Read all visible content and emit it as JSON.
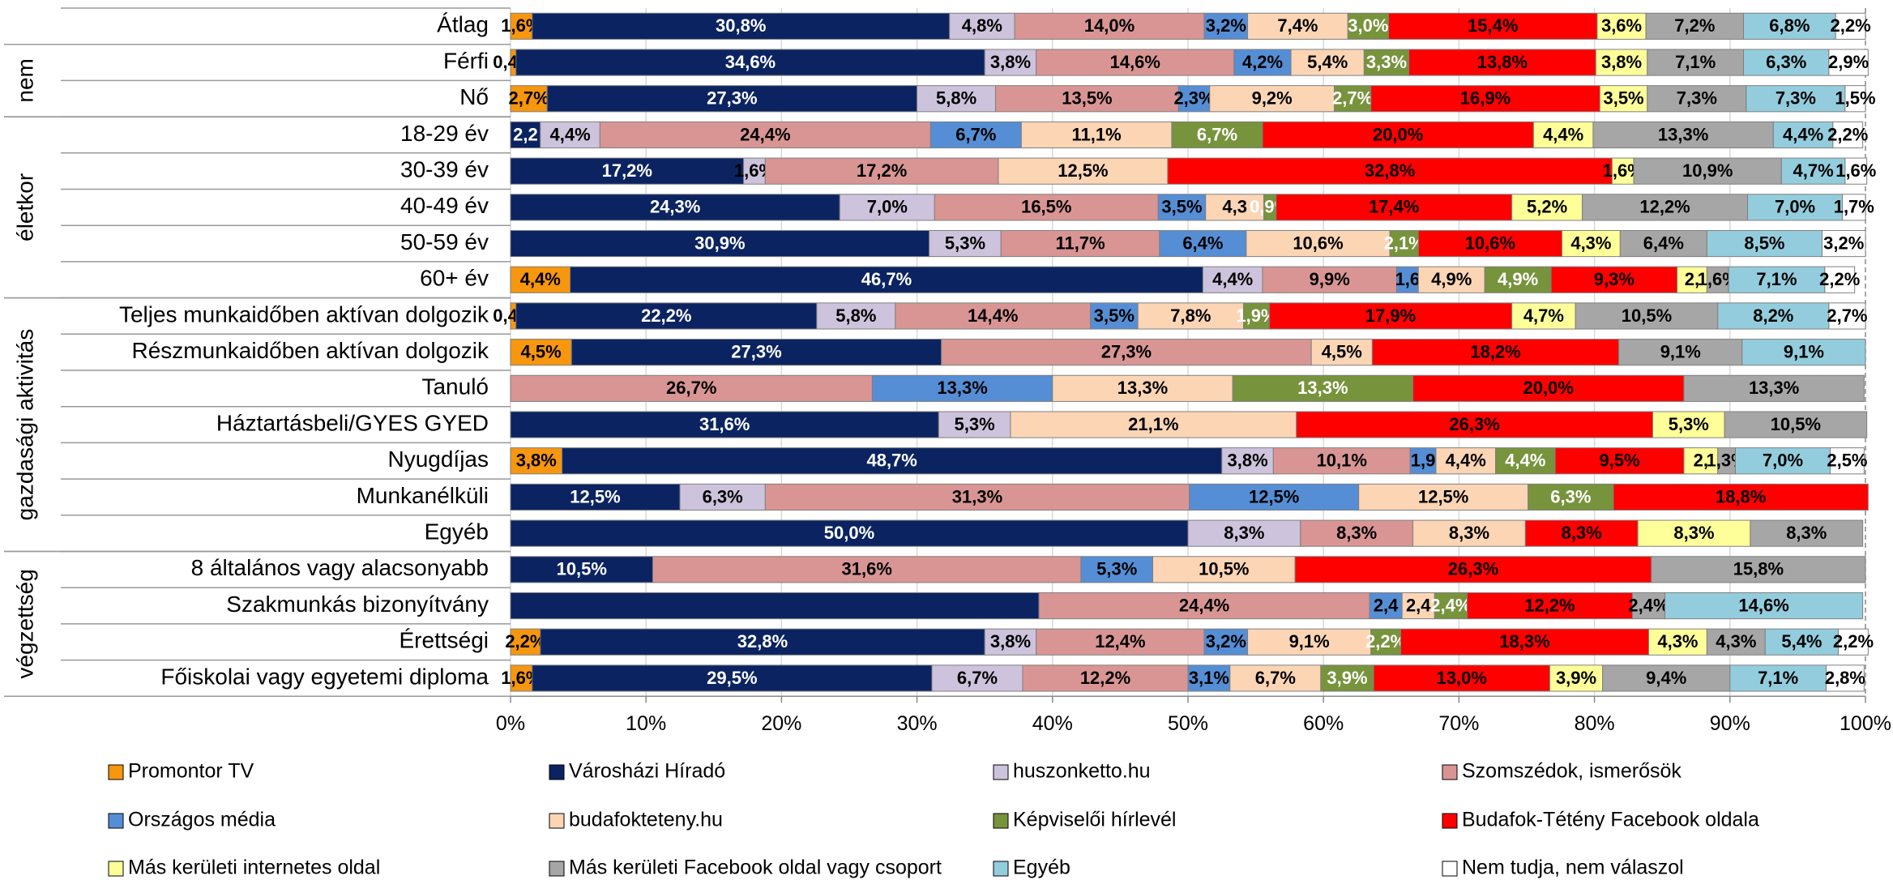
{
  "chart_data": {
    "type": "stacked-bar-horizontal",
    "categories": [
      "Átlag",
      "Férfi",
      "Nő",
      "18-29 év",
      "30-39 év",
      "40-49 év",
      "50-59 év",
      "60+ év",
      "Teljes munkaidőben aktívan dolgozik",
      "Részmunkaidőben aktívan dolgozik",
      "Tanuló",
      "Háztartásbeli/GYES GYED",
      "Nyugdíjas",
      "Munkanélküli",
      "Egyéb",
      "8 általános vagy alacsonyabb",
      "Szakmunkás bizonyítvány",
      "Érettségi",
      "Főiskolai vagy egyetemi diploma"
    ],
    "groups": [
      {
        "label": "nem",
        "rows": [
          1,
          2
        ]
      },
      {
        "label": "életkor",
        "rows": [
          3,
          4,
          5,
          6,
          7
        ]
      },
      {
        "label": "gazdasági aktivitás",
        "rows": [
          8,
          9,
          10,
          11,
          12,
          13,
          14
        ]
      },
      {
        "label": "végzettség",
        "rows": [
          15,
          16,
          17,
          18
        ]
      }
    ],
    "xlim": [
      0,
      100
    ],
    "xticks": [
      {
        "value": 0,
        "label": "0%"
      },
      {
        "value": 10,
        "label": "10%"
      },
      {
        "value": 20,
        "label": "20%"
      },
      {
        "value": 30,
        "label": "30%"
      },
      {
        "value": 40,
        "label": "40%"
      },
      {
        "value": 50,
        "label": "50%"
      },
      {
        "value": 60,
        "label": "60%"
      },
      {
        "value": 70,
        "label": "70%"
      },
      {
        "value": 80,
        "label": "80%"
      },
      {
        "value": 90,
        "label": "90%"
      },
      {
        "value": 100,
        "label": "100%"
      }
    ],
    "grid": true,
    "legend": "bottom",
    "series": [
      {
        "name": "Promontor TV",
        "color": "#f7960f",
        "label_color": "#000000",
        "values": [
          1.6,
          0.4,
          2.7,
          null,
          null,
          null,
          null,
          4.4,
          0.4,
          4.5,
          null,
          null,
          3.8,
          null,
          null,
          null,
          null,
          2.2,
          1.6
        ],
        "value_labels": [
          "1,6%",
          "0,4%",
          "2,7%",
          null,
          null,
          null,
          null,
          "4,4%",
          "0,4%",
          "4,5%",
          null,
          null,
          "3,8%",
          null,
          null,
          null,
          null,
          "2,2%",
          "1,6%"
        ]
      },
      {
        "name": "Városházi Híradó",
        "color": "#0b2461",
        "label_color": "#ffffff",
        "values": [
          30.8,
          34.6,
          27.3,
          2.2,
          17.2,
          24.3,
          30.9,
          46.7,
          22.2,
          27.3,
          null,
          31.6,
          48.7,
          12.5,
          50.0,
          10.5,
          39.0,
          32.8,
          29.5
        ],
        "value_labels": [
          "30,8%",
          "34,6%",
          "27,3%",
          "2,2",
          "17,2%",
          "24,3%",
          "30,9%",
          "46,7%",
          "22,2%",
          "27,3%",
          null,
          "31,6%",
          "48,7%",
          "12,5%",
          "50,0%",
          "10,5%",
          null,
          "32,8%",
          "29,5%"
        ]
      },
      {
        "name": "huszonketto.hu",
        "color": "#cdc3dc",
        "label_color": "#000000",
        "values": [
          4.8,
          3.8,
          5.8,
          4.4,
          1.6,
          7.0,
          5.3,
          4.4,
          5.8,
          null,
          null,
          5.3,
          3.8,
          6.3,
          8.3,
          null,
          null,
          3.8,
          6.7
        ],
        "value_labels": [
          "4,8%",
          "3,8%",
          "5,8%",
          "4,4%",
          "1,6%",
          "7,0%",
          "5,3%",
          "4,4%",
          "5,8%",
          null,
          null,
          "5,3%",
          "3,8%",
          "6,3%",
          "8,3%",
          null,
          null,
          "3,8%",
          "6,7%"
        ]
      },
      {
        "name": "Szomszédok, ismerősök",
        "color": "#d99594",
        "label_color": "#000000",
        "values": [
          14.0,
          14.6,
          13.5,
          24.4,
          17.2,
          16.5,
          11.7,
          9.9,
          14.4,
          27.3,
          26.7,
          null,
          10.1,
          31.3,
          8.3,
          31.6,
          24.4,
          12.4,
          12.2
        ],
        "value_labels": [
          "14,0%",
          "14,6%",
          "13,5%",
          "24,4%",
          "17,2%",
          "16,5%",
          "11,7%",
          "9,9%",
          "14,4%",
          "27,3%",
          "26,7%",
          null,
          "10,1%",
          "31,3%",
          "8,3%",
          "31,6%",
          "24,4%",
          "12,4%",
          "12,2%"
        ]
      },
      {
        "name": "Országos média",
        "color": "#558ed5",
        "label_color": "#000000",
        "values": [
          3.2,
          4.2,
          2.3,
          6.7,
          null,
          3.5,
          6.4,
          1.6,
          3.5,
          null,
          13.3,
          null,
          1.9,
          12.5,
          null,
          5.3,
          2.4,
          3.2,
          3.1
        ],
        "value_labels": [
          "3,2%",
          "4,2%",
          "2,3%",
          "6,7%",
          null,
          "3,5%",
          "6,4%",
          "1,6",
          "3,5%",
          null,
          "13,3%",
          null,
          "1,9",
          "12,5%",
          null,
          "5,3%",
          "2,4",
          "3,2%",
          "3,1%"
        ]
      },
      {
        "name": "budafokteteny.hu",
        "color": "#fcd5b5",
        "label_color": "#000000",
        "values": [
          7.4,
          5.4,
          9.2,
          11.1,
          12.5,
          4.3,
          10.6,
          4.9,
          7.8,
          4.5,
          13.3,
          21.1,
          4.4,
          12.5,
          8.3,
          10.5,
          2.4,
          9.1,
          6.7
        ],
        "value_labels": [
          "7,4%",
          "5,4%",
          "9,2%",
          "11,1%",
          "12,5%",
          "4,3",
          "10,6%",
          "4,9%",
          "7,8%",
          "4,5%",
          "13,3%",
          "21,1%",
          "4,4%",
          "12,5%",
          "8,3%",
          "10,5%",
          "2,4",
          "9,1%",
          "6,7%"
        ]
      },
      {
        "name": "Képviselői hírlevél",
        "color": "#77933c",
        "label_color": "#ffffff",
        "values": [
          3.0,
          3.3,
          2.7,
          6.7,
          null,
          0.9,
          2.1,
          4.9,
          1.9,
          null,
          13.3,
          null,
          4.4,
          6.3,
          null,
          null,
          2.4,
          2.2,
          3.9
        ],
        "value_labels": [
          "3,0%",
          "3,3%",
          "2,7%",
          "6,7%",
          null,
          "0,9%",
          "2,1%",
          "4,9%",
          "1,9%",
          null,
          "13,3%",
          null,
          "4,4%",
          "6,3%",
          null,
          null,
          "2,4%",
          "2,2%",
          "3,9%"
        ]
      },
      {
        "name": "Budafok-Tétény Facebook oldala",
        "color": "#ff0000",
        "label_color": "#000000",
        "values": [
          15.4,
          13.8,
          16.9,
          20.0,
          32.8,
          17.4,
          10.6,
          9.3,
          17.9,
          18.2,
          20.0,
          26.3,
          9.5,
          18.8,
          8.3,
          26.3,
          12.2,
          18.3,
          13.0
        ],
        "value_labels": [
          "15,4%",
          "13,8%",
          "16,9%",
          "20,0%",
          "32,8%",
          "17,4%",
          "10,6%",
          "9,3%",
          "17,9%",
          "18,2%",
          "20,0%",
          "26,3%",
          "9,5%",
          "18,8%",
          "8,3%",
          "26,3%",
          "12,2%",
          "18,3%",
          "13,0%"
        ]
      },
      {
        "name": "Más kerületi internetes oldal",
        "color": "#ffff99",
        "label_color": "#000000",
        "values": [
          3.6,
          3.8,
          3.5,
          4.4,
          1.6,
          5.2,
          4.3,
          2.2,
          4.7,
          null,
          null,
          5.3,
          2.5,
          null,
          8.3,
          null,
          null,
          4.3,
          3.9
        ],
        "value_labels": [
          "3,6%",
          "3,8%",
          "3,5%",
          "4,4%",
          "1,6%",
          "5,2%",
          "4,3%",
          "2,",
          "4,7%",
          null,
          null,
          "5,3%",
          "2,",
          null,
          "8,3%",
          null,
          null,
          "4,3%",
          "3,9%"
        ]
      },
      {
        "name": "Más kerületi Facebook oldal vagy csoport",
        "color": "#a6a6a6",
        "label_color": "#000000",
        "values": [
          7.2,
          7.1,
          7.3,
          13.3,
          10.9,
          12.2,
          6.4,
          1.6,
          10.5,
          9.1,
          13.3,
          10.5,
          1.3,
          null,
          8.3,
          15.8,
          2.4,
          4.3,
          9.4
        ],
        "value_labels": [
          "7,2%",
          "7,1%",
          "7,3%",
          "13,3%",
          "10,9%",
          "12,2%",
          "6,4%",
          "1,6%",
          "10,5%",
          "9,1%",
          "13,3%",
          "10,5%",
          "1,3%",
          null,
          "8,3%",
          "15,8%",
          "2,4%",
          "4,3%",
          "9,4%"
        ]
      },
      {
        "name": "Egyéb",
        "color": "#93cddd",
        "label_color": "#000000",
        "values": [
          6.8,
          6.3,
          7.3,
          4.4,
          4.7,
          7.0,
          8.5,
          7.1,
          8.2,
          9.1,
          null,
          null,
          7.0,
          null,
          null,
          null,
          14.6,
          5.4,
          7.1
        ],
        "value_labels": [
          "6,8%",
          "6,3%",
          "7,3%",
          "4,4%",
          "4,7%",
          "7,0%",
          "8,5%",
          "7,1%",
          "8,2%",
          "9,1%",
          null,
          null,
          "7,0%",
          null,
          null,
          null,
          "14,6%",
          "5,4%",
          "7,1%"
        ]
      },
      {
        "name": "Nem tudja, nem válaszol",
        "color": "#ffffff",
        "label_color": "#000000",
        "values": [
          2.2,
          2.9,
          1.5,
          2.2,
          1.6,
          1.7,
          3.2,
          2.2,
          2.7,
          null,
          null,
          null,
          2.5,
          null,
          null,
          null,
          null,
          2.2,
          2.8
        ],
        "value_labels": [
          "2,2%",
          "2,9%",
          "1,5%",
          "2,2%",
          "1,6%",
          "1,7%",
          "3,2%",
          "2,2%",
          "2,7%",
          null,
          null,
          null,
          "2,5%",
          null,
          null,
          null,
          null,
          "2,2%",
          "2,8%"
        ]
      }
    ]
  }
}
